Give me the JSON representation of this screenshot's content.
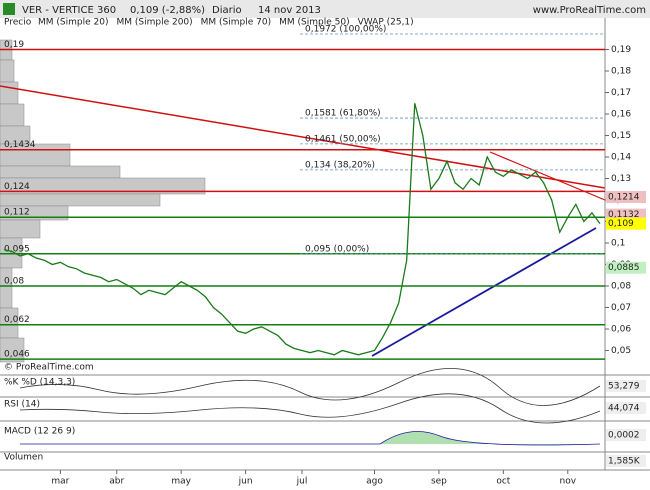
{
  "header": {
    "title": "VER - VERTICE 360",
    "quote": "0,109 (-2,88%)",
    "period": "Diario",
    "date": "14 nov 2013",
    "site": "www.ProRealTime.com",
    "footer": "© ProRealTime.com"
  },
  "chart_data": {
    "type": "line",
    "legend": [
      "MM (Simple 20)",
      "MM (Simple 200)",
      "MM (Simple 70)",
      "MM (Simple 50)",
      "VWAP (25,1)"
    ],
    "legend_colors": [
      "#c03030",
      "#1a6a1a",
      "#1a1a8a",
      "#999999",
      "#999999"
    ],
    "categories": [
      null,
      null,
      null,
      null,
      null,
      null,
      null,
      "mar",
      null,
      null,
      null,
      null,
      null,
      null,
      "abr",
      null,
      null,
      null,
      null,
      null,
      null,
      null,
      "may",
      null,
      null,
      null,
      null,
      null,
      null,
      null,
      "jun",
      null,
      null,
      null,
      null,
      null,
      null,
      "jul",
      null,
      null,
      null,
      null,
      null,
      null,
      null,
      null,
      "ago",
      null,
      null,
      null,
      null,
      null,
      null,
      null,
      "sep",
      null,
      null,
      null,
      null,
      null,
      null,
      null,
      "oct",
      null,
      null,
      null,
      null,
      null,
      null,
      null,
      "nov",
      null,
      null,
      null,
      null
    ],
    "series": [
      {
        "name": "Precio",
        "color": "#1a7a1a",
        "values": [
          0.097,
          0.096,
          0.094,
          0.095,
          0.093,
          0.092,
          0.09,
          0.091,
          0.089,
          0.088,
          0.086,
          0.085,
          0.084,
          0.082,
          0.083,
          0.081,
          0.079,
          0.076,
          0.078,
          0.077,
          0.076,
          0.079,
          0.082,
          0.08,
          0.078,
          0.075,
          0.07,
          0.067,
          0.063,
          0.059,
          0.058,
          0.06,
          0.061,
          0.059,
          0.057,
          0.053,
          0.051,
          0.05,
          0.049,
          0.05,
          0.049,
          0.048,
          0.05,
          0.049,
          0.048,
          0.049,
          0.05,
          0.056,
          0.063,
          0.072,
          0.092,
          0.165,
          0.15,
          0.125,
          0.13,
          0.138,
          0.128,
          0.125,
          0.13,
          0.127,
          0.14,
          0.133,
          0.131,
          0.134,
          0.132,
          0.13,
          0.133,
          0.128,
          0.12,
          0.105,
          0.112,
          0.118,
          0.11,
          0.114,
          0.109
        ]
      }
    ],
    "ylim": [
      0.04,
      0.2
    ],
    "yticks": [
      {
        "value": 0.05,
        "label": "0,05"
      },
      {
        "value": 0.06,
        "label": "0,06"
      },
      {
        "value": 0.07,
        "label": "0,07"
      },
      {
        "value": 0.08,
        "label": "0,08"
      },
      {
        "value": 0.09,
        "label": "0,09"
      },
      {
        "value": 0.1,
        "label": "0,1"
      },
      {
        "value": 0.11,
        "label": "0,11"
      },
      {
        "value": 0.12,
        "label": "0,12"
      },
      {
        "value": 0.13,
        "label": "0,13"
      },
      {
        "value": 0.14,
        "label": "0,14"
      },
      {
        "value": 0.15,
        "label": "0,15"
      },
      {
        "value": 0.16,
        "label": "0,16"
      },
      {
        "value": 0.17,
        "label": "0,17"
      },
      {
        "value": 0.18,
        "label": "0,18"
      },
      {
        "value": 0.19,
        "label": "0,19"
      }
    ],
    "levels": [
      {
        "value": 0.19,
        "label": "0,19",
        "color": "#d01010"
      },
      {
        "value": 0.1434,
        "label": "0,1434",
        "color": "#d01010"
      },
      {
        "value": 0.124,
        "label": "0,124",
        "color": "#d01010"
      },
      {
        "value": 0.112,
        "label": "0,112",
        "color": "#108010"
      },
      {
        "value": 0.095,
        "label": "0,095",
        "color": "#108010"
      },
      {
        "value": 0.08,
        "label": "0,08",
        "color": "#108010"
      },
      {
        "value": 0.062,
        "label": "0,062",
        "color": "#108010"
      },
      {
        "value": 0.046,
        "label": "0,046",
        "color": "#108010"
      }
    ],
    "fibonacci": [
      {
        "value": 0.1972,
        "label": "0,1972 (100,00%)"
      },
      {
        "value": 0.1581,
        "label": "0,1581 (61,80%)"
      },
      {
        "value": 0.1461,
        "label": "0,1461 (50,00%)"
      },
      {
        "value": 0.134,
        "label": "0,134 (38,20%)"
      },
      {
        "value": 0.095,
        "label": "0,095 (0,00%)"
      }
    ],
    "price_tags": [
      {
        "value": 0.1214,
        "label": "0,1214",
        "color": "#f0c0c0"
      },
      {
        "value": 0.1132,
        "label": "0,1132",
        "color": "#f0c0c0"
      },
      {
        "value": 0.109,
        "label": "0,109",
        "color": "#ffff00"
      },
      {
        "value": 0.0885,
        "label": "0,0885",
        "color": "#c0f0c0"
      }
    ],
    "indicators": [
      {
        "name": "%K %D (14,3,3)",
        "value": "53,279"
      },
      {
        "name": "RSI (14)",
        "value": "44,074"
      },
      {
        "name": "MACD (12 26 9)",
        "value": "0,0002"
      },
      {
        "name": "Volumen",
        "value": "1,585K"
      }
    ]
  }
}
